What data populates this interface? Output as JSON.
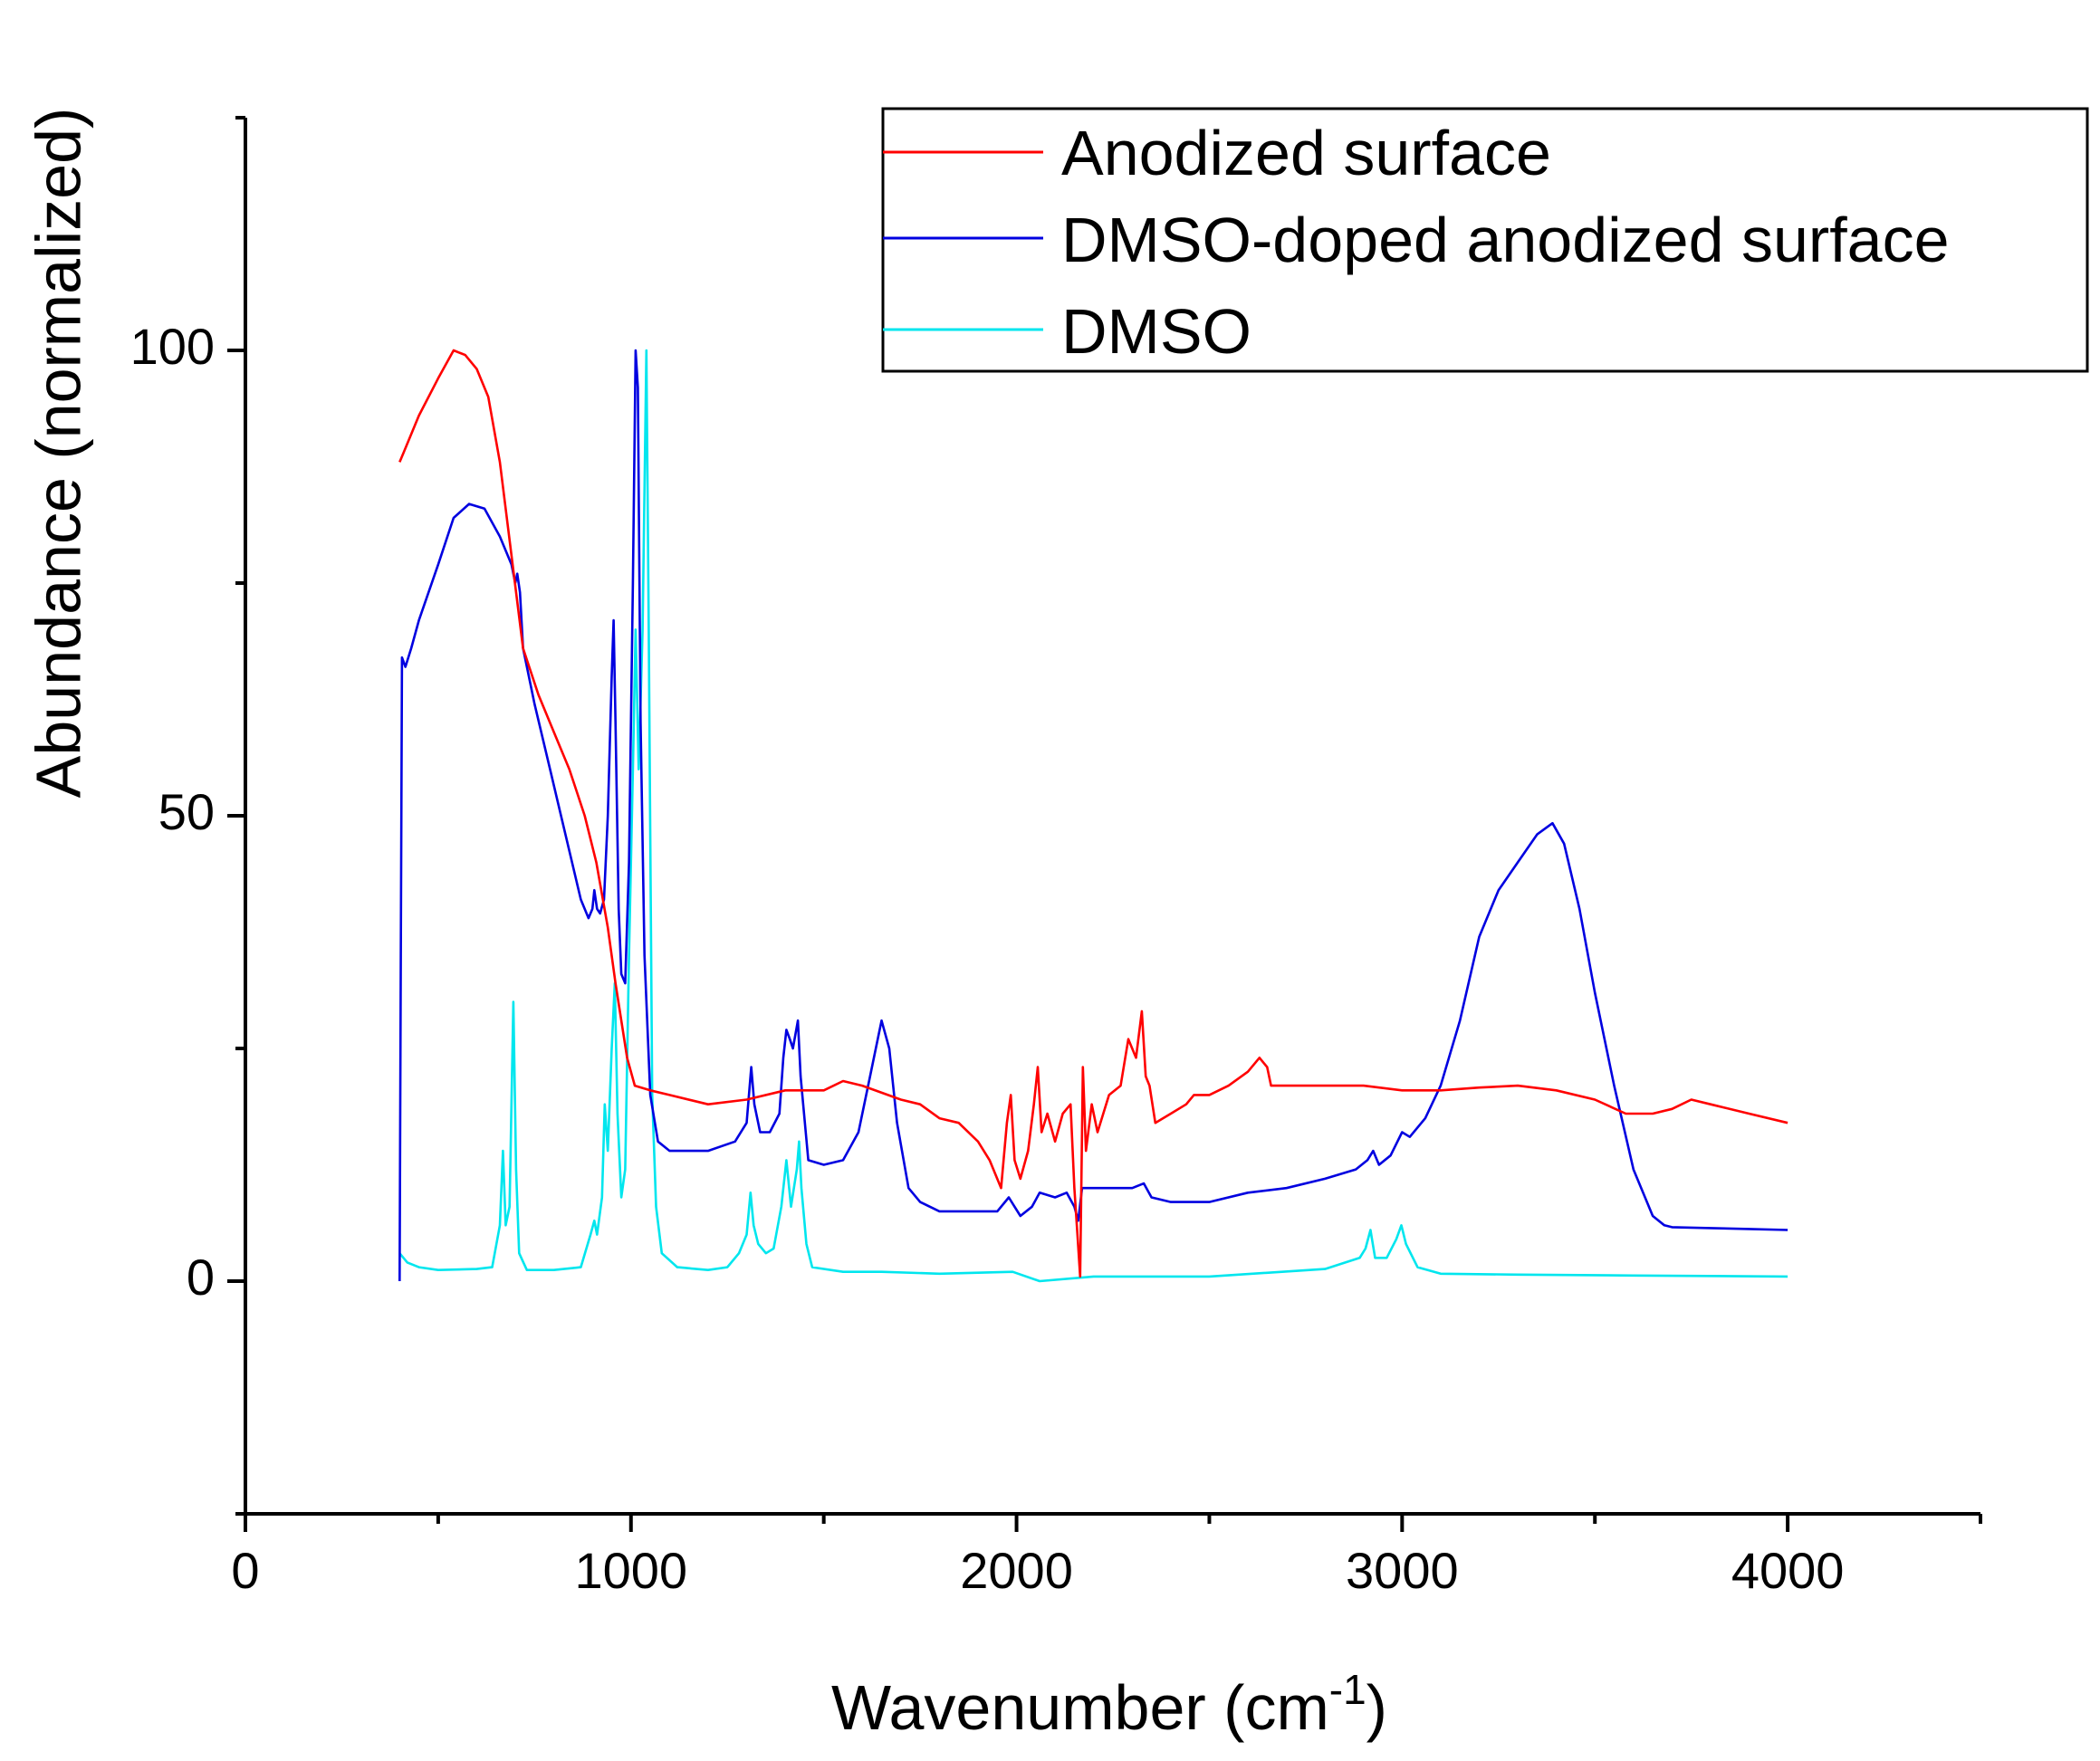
{
  "chart_data": {
    "type": "line",
    "xlabel": "Wavenumber (cm",
    "xlabel_sup": "-1",
    "xlabel_end": ")",
    "ylabel": "Abundance (normalized)",
    "xlim": [
      0,
      4500
    ],
    "ylim": [
      -25,
      125
    ],
    "x_ticks": [
      0,
      1000,
      2000,
      3000,
      4000
    ],
    "x_minor_ticks": [
      500,
      1500,
      2500,
      3500,
      4500
    ],
    "y_ticks": [
      0,
      50,
      100
    ],
    "y_minor_ticks": [
      -25,
      25,
      75,
      125
    ],
    "legend_position": "top-right",
    "series": [
      {
        "name": "Anodized surface",
        "color": "#ff0000",
        "points": [
          [
            400,
            88
          ],
          [
            410,
            89
          ],
          [
            450,
            93
          ],
          [
            500,
            97
          ],
          [
            540,
            100
          ],
          [
            570,
            99.5
          ],
          [
            600,
            98
          ],
          [
            630,
            95
          ],
          [
            660,
            88
          ],
          [
            690,
            78
          ],
          [
            720,
            68
          ],
          [
            760,
            63
          ],
          [
            800,
            59
          ],
          [
            840,
            55
          ],
          [
            880,
            50
          ],
          [
            910,
            45
          ],
          [
            940,
            38
          ],
          [
            960,
            32
          ],
          [
            990,
            24
          ],
          [
            1010,
            21
          ],
          [
            1050,
            20.5
          ],
          [
            1100,
            20
          ],
          [
            1200,
            19
          ],
          [
            1300,
            19.5
          ],
          [
            1400,
            20.5
          ],
          [
            1500,
            20.5
          ],
          [
            1550,
            21.5
          ],
          [
            1600,
            21
          ],
          [
            1700,
            19.5
          ],
          [
            1750,
            19
          ],
          [
            1800,
            17.5
          ],
          [
            1850,
            17
          ],
          [
            1900,
            15
          ],
          [
            1930,
            13
          ],
          [
            1960,
            10
          ],
          [
            1975,
            17
          ],
          [
            1985,
            20
          ],
          [
            1995,
            13
          ],
          [
            2010,
            11
          ],
          [
            2030,
            14
          ],
          [
            2045,
            19
          ],
          [
            2055,
            23
          ],
          [
            2065,
            16
          ],
          [
            2080,
            18
          ],
          [
            2100,
            15
          ],
          [
            2120,
            18
          ],
          [
            2140,
            19
          ],
          [
            2150,
            10
          ],
          [
            2158,
            5
          ],
          [
            2165,
            0.5
          ],
          [
            2172,
            23
          ],
          [
            2180,
            14
          ],
          [
            2195,
            19
          ],
          [
            2210,
            16
          ],
          [
            2240,
            20
          ],
          [
            2270,
            21
          ],
          [
            2290,
            26
          ],
          [
            2310,
            24
          ],
          [
            2325,
            29
          ],
          [
            2335,
            22
          ],
          [
            2345,
            21
          ],
          [
            2360,
            17
          ],
          [
            2400,
            18
          ],
          [
            2440,
            19
          ],
          [
            2460,
            20
          ],
          [
            2500,
            20
          ],
          [
            2550,
            21
          ],
          [
            2600,
            22.5
          ],
          [
            2630,
            24
          ],
          [
            2650,
            23
          ],
          [
            2660,
            21
          ],
          [
            2700,
            21
          ],
          [
            2900,
            21
          ],
          [
            3000,
            20.5
          ],
          [
            3100,
            20.5
          ],
          [
            3200,
            20.8
          ],
          [
            3300,
            21
          ],
          [
            3400,
            20.5
          ],
          [
            3500,
            19.5
          ],
          [
            3580,
            18
          ],
          [
            3650,
            18
          ],
          [
            3700,
            18.5
          ],
          [
            3750,
            19.5
          ],
          [
            3800,
            19
          ],
          [
            3900,
            18
          ],
          [
            4000,
            17
          ]
        ]
      },
      {
        "name": "DMSO-doped anodized surface",
        "color": "#0000e0",
        "points": [
          [
            400,
            0
          ],
          [
            403,
            35
          ],
          [
            406,
            67
          ],
          [
            415,
            66
          ],
          [
            430,
            68
          ],
          [
            450,
            71
          ],
          [
            500,
            77
          ],
          [
            540,
            82
          ],
          [
            580,
            83.5
          ],
          [
            620,
            83
          ],
          [
            660,
            80
          ],
          [
            690,
            77
          ],
          [
            700,
            75
          ],
          [
            705,
            76
          ],
          [
            712,
            74
          ],
          [
            720,
            68
          ],
          [
            750,
            62
          ],
          [
            790,
            55
          ],
          [
            830,
            48
          ],
          [
            870,
            41
          ],
          [
            890,
            39
          ],
          [
            900,
            40
          ],
          [
            905,
            42
          ],
          [
            912,
            40
          ],
          [
            920,
            39.5
          ],
          [
            930,
            41
          ],
          [
            940,
            50
          ],
          [
            950,
            65
          ],
          [
            955,
            71
          ],
          [
            960,
            60
          ],
          [
            968,
            40
          ],
          [
            975,
            33
          ],
          [
            985,
            32
          ],
          [
            995,
            45
          ],
          [
            1005,
            75
          ],
          [
            1012,
            100
          ],
          [
            1018,
            96
          ],
          [
            1025,
            60
          ],
          [
            1035,
            35
          ],
          [
            1050,
            20
          ],
          [
            1070,
            15
          ],
          [
            1100,
            14
          ],
          [
            1200,
            14
          ],
          [
            1270,
            15
          ],
          [
            1300,
            17
          ],
          [
            1312,
            23
          ],
          [
            1320,
            19
          ],
          [
            1335,
            16
          ],
          [
            1360,
            16
          ],
          [
            1385,
            18
          ],
          [
            1395,
            24
          ],
          [
            1403,
            27
          ],
          [
            1412,
            26
          ],
          [
            1420,
            25
          ],
          [
            1433,
            28
          ],
          [
            1440,
            22
          ],
          [
            1460,
            13
          ],
          [
            1500,
            12.5
          ],
          [
            1550,
            13
          ],
          [
            1590,
            16
          ],
          [
            1620,
            22
          ],
          [
            1650,
            28
          ],
          [
            1670,
            25
          ],
          [
            1690,
            17
          ],
          [
            1720,
            10
          ],
          [
            1750,
            8.5
          ],
          [
            1800,
            7.5
          ],
          [
            1900,
            7.5
          ],
          [
            1950,
            7.5
          ],
          [
            1980,
            9
          ],
          [
            1995,
            8
          ],
          [
            2010,
            7
          ],
          [
            2040,
            8
          ],
          [
            2060,
            9.5
          ],
          [
            2100,
            9
          ],
          [
            2130,
            9.5
          ],
          [
            2150,
            8
          ],
          [
            2160,
            6.5
          ],
          [
            2170,
            10
          ],
          [
            2200,
            10
          ],
          [
            2250,
            10
          ],
          [
            2300,
            10
          ],
          [
            2330,
            10.5
          ],
          [
            2350,
            9
          ],
          [
            2400,
            8.5
          ],
          [
            2500,
            8.5
          ],
          [
            2600,
            9.5
          ],
          [
            2700,
            10
          ],
          [
            2800,
            11
          ],
          [
            2880,
            12
          ],
          [
            2910,
            13
          ],
          [
            2925,
            14
          ],
          [
            2940,
            12.5
          ],
          [
            2970,
            13.5
          ],
          [
            3000,
            16
          ],
          [
            3020,
            15.5
          ],
          [
            3060,
            17.5
          ],
          [
            3100,
            21
          ],
          [
            3150,
            28
          ],
          [
            3200,
            37
          ],
          [
            3250,
            42
          ],
          [
            3300,
            45
          ],
          [
            3350,
            48
          ],
          [
            3390,
            49.2
          ],
          [
            3420,
            47
          ],
          [
            3460,
            40
          ],
          [
            3500,
            31
          ],
          [
            3550,
            21
          ],
          [
            3600,
            12
          ],
          [
            3650,
            7
          ],
          [
            3680,
            6
          ],
          [
            3700,
            5.8
          ],
          [
            3800,
            5.7
          ],
          [
            3900,
            5.6
          ],
          [
            4000,
            5.5
          ]
        ]
      },
      {
        "name": "DMSO",
        "color": "#00e6ee",
        "points": [
          [
            400,
            3
          ],
          [
            420,
            2
          ],
          [
            450,
            1.5
          ],
          [
            500,
            1.2
          ],
          [
            600,
            1.3
          ],
          [
            640,
            1.5
          ],
          [
            660,
            6
          ],
          [
            668,
            14
          ],
          [
            675,
            6
          ],
          [
            685,
            8
          ],
          [
            695,
            30
          ],
          [
            702,
            12
          ],
          [
            710,
            3
          ],
          [
            730,
            1.2
          ],
          [
            800,
            1.2
          ],
          [
            870,
            1.5
          ],
          [
            895,
            5
          ],
          [
            905,
            6.5
          ],
          [
            912,
            5
          ],
          [
            925,
            9
          ],
          [
            932,
            19
          ],
          [
            940,
            14
          ],
          [
            950,
            25
          ],
          [
            958,
            32
          ],
          [
            965,
            18
          ],
          [
            975,
            9
          ],
          [
            985,
            12
          ],
          [
            995,
            35
          ],
          [
            1005,
            55
          ],
          [
            1012,
            70
          ],
          [
            1020,
            55
          ],
          [
            1030,
            70
          ],
          [
            1040,
            100
          ],
          [
            1046,
            70
          ],
          [
            1055,
            20
          ],
          [
            1065,
            8
          ],
          [
            1080,
            3
          ],
          [
            1120,
            1.5
          ],
          [
            1200,
            1.2
          ],
          [
            1250,
            1.5
          ],
          [
            1280,
            3
          ],
          [
            1300,
            5
          ],
          [
            1310,
            9.5
          ],
          [
            1318,
            6
          ],
          [
            1330,
            4
          ],
          [
            1350,
            3
          ],
          [
            1370,
            3.5
          ],
          [
            1390,
            8
          ],
          [
            1403,
            13
          ],
          [
            1415,
            8
          ],
          [
            1430,
            12
          ],
          [
            1436,
            15
          ],
          [
            1442,
            10
          ],
          [
            1455,
            4
          ],
          [
            1470,
            1.5
          ],
          [
            1550,
            1
          ],
          [
            1650,
            1
          ],
          [
            1800,
            0.8
          ],
          [
            1990,
            1
          ],
          [
            2060,
            0
          ],
          [
            2200,
            0.5
          ],
          [
            2500,
            0.5
          ],
          [
            2800,
            1.3
          ],
          [
            2890,
            2.5
          ],
          [
            2905,
            3.5
          ],
          [
            2918,
            5.5
          ],
          [
            2930,
            2.5
          ],
          [
            2960,
            2.5
          ],
          [
            2985,
            4.5
          ],
          [
            2998,
            6
          ],
          [
            3010,
            4
          ],
          [
            3040,
            1.5
          ],
          [
            3100,
            0.8
          ],
          [
            3300,
            0.7
          ],
          [
            3600,
            0.6
          ],
          [
            4000,
            0.5
          ]
        ]
      }
    ]
  }
}
